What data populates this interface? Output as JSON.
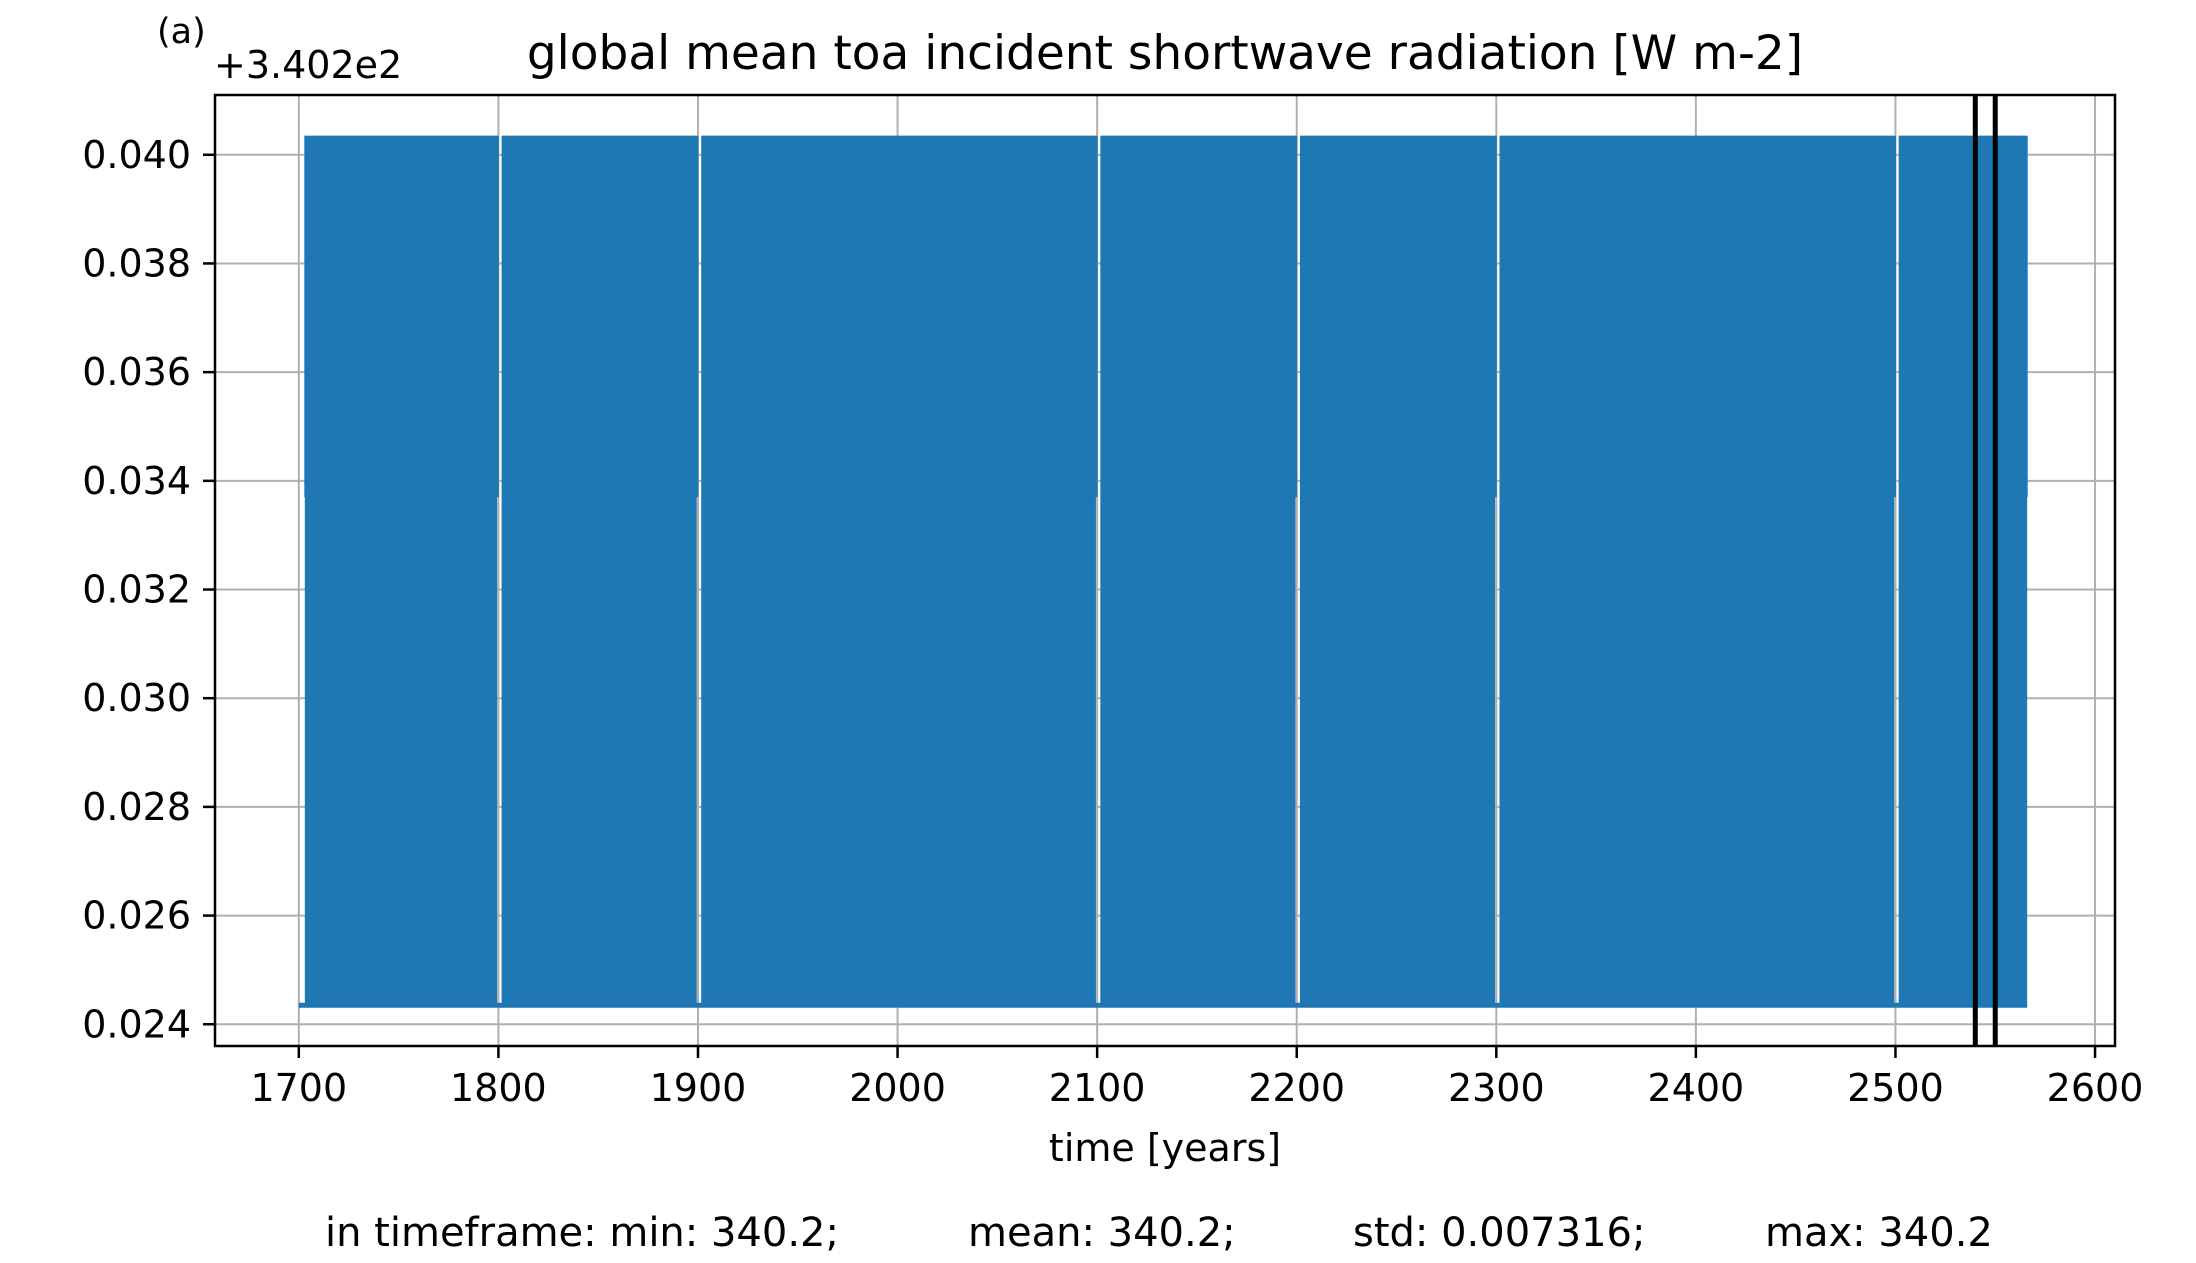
{
  "panel_label": "(a)",
  "chart_data": {
    "type": "line",
    "title": "global mean toa incident shortwave radiation [W m-2]",
    "xlabel": "time [years]",
    "ylabel": "",
    "y_offset_label": "+3.402e2",
    "xlim": [
      1658,
      2610
    ],
    "ylim": [
      0.0236,
      0.0411
    ],
    "xticks": [
      1700,
      1800,
      1900,
      2000,
      2100,
      2200,
      2300,
      2400,
      2500,
      2600
    ],
    "xtick_labels": [
      "1700",
      "1800",
      "1900",
      "2000",
      "2100",
      "2200",
      "2300",
      "2400",
      "2500",
      "2600"
    ],
    "yticks": [
      0.024,
      0.026,
      0.028,
      0.03,
      0.032,
      0.034,
      0.036,
      0.038,
      0.04
    ],
    "ytick_labels": [
      "0.024",
      "0.026",
      "0.028",
      "0.030",
      "0.032",
      "0.034",
      "0.036",
      "0.038",
      "0.040"
    ],
    "grid": true,
    "series": [
      {
        "color": "#1f77b4",
        "x_start": 1700,
        "x_end": 2566,
        "annual_cycle_min": 0.02435,
        "annual_cycle_max": 0.04035,
        "gap_years": [
          1800,
          1900,
          2100,
          2200,
          2300,
          2500
        ]
      }
    ],
    "vlines": [
      2540,
      2550
    ],
    "vline_color": "#000000"
  },
  "stats": {
    "min": "in timeframe: min: 340.2;",
    "mean": "mean: 340.2;",
    "std": "std: 0.007316;",
    "max": "max: 340.2"
  }
}
